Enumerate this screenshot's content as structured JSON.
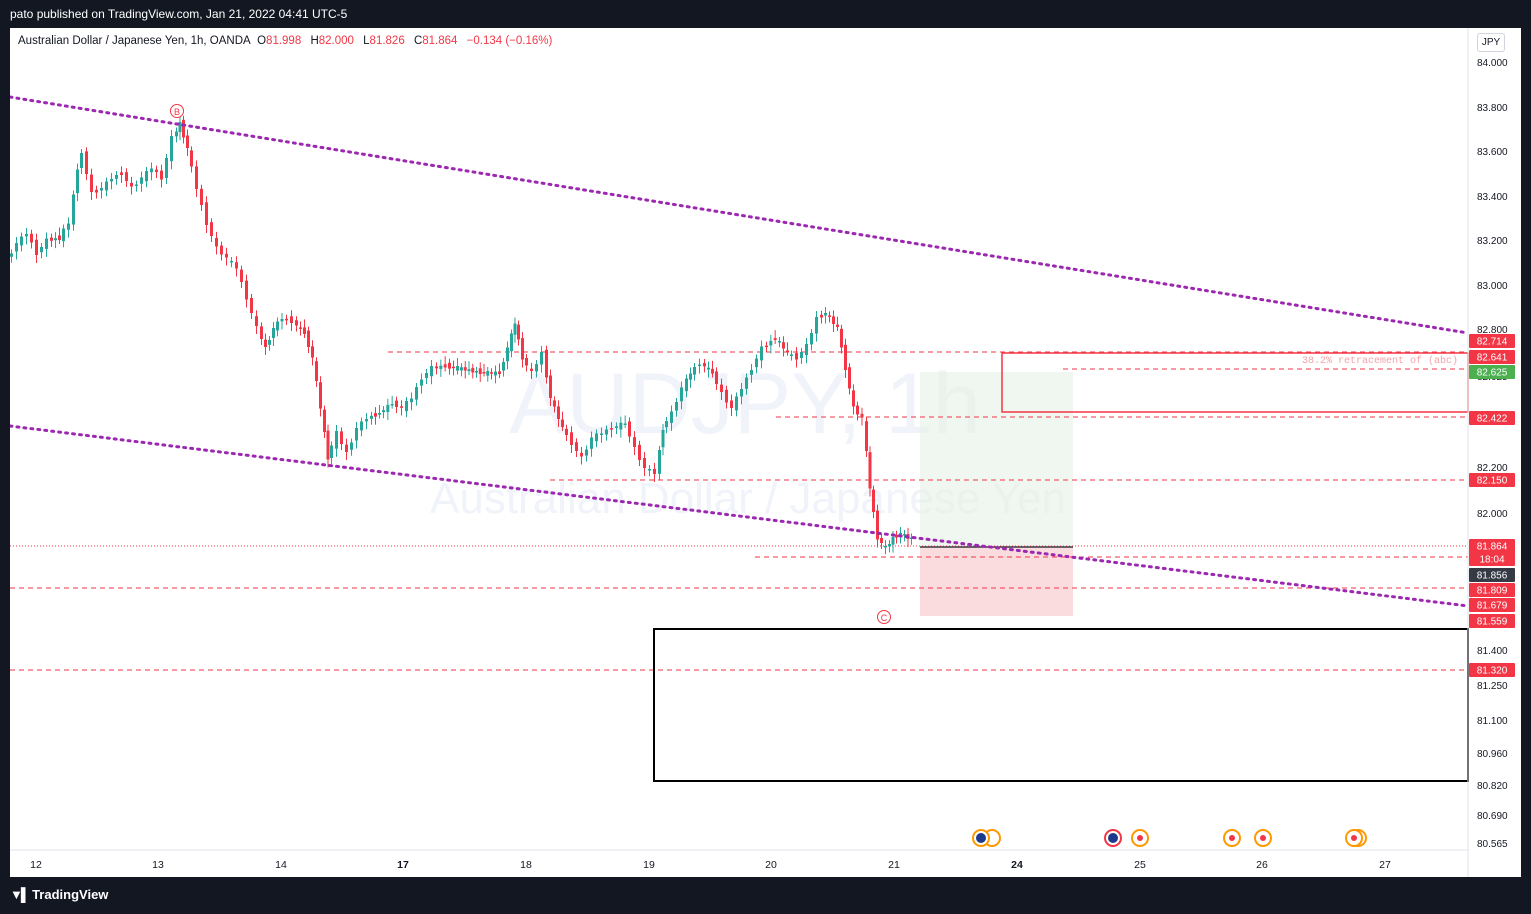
{
  "header": {
    "published": "pato published on TradingView.com, Jan 21, 2022 04:41 UTC-5"
  },
  "legend": {
    "symbol": "Australian Dollar / Japanese Yen, 1h, OANDA",
    "open_label": "O",
    "open": "81.998",
    "high_label": "H",
    "high": "82.000",
    "low_label": "L",
    "low": "81.826",
    "close_label": "C",
    "close": "81.864",
    "change": "−0.134 (−0.16%)"
  },
  "currency_button": "JPY",
  "watermark": {
    "ticker": "AUDJPY, 1h",
    "name": "Australian Dollar / Japanese Yen"
  },
  "annotations": {
    "fib_text": "38.2% retracement of (abc)",
    "wave_b": "B",
    "wave_c": "C"
  },
  "price_axis": [
    "84.000",
    "83.800",
    "83.600",
    "83.400",
    "83.200",
    "83.000",
    "82.800",
    "82.625",
    "82.200",
    "82.000",
    "81.400",
    "81.250",
    "81.100",
    "80.960",
    "80.820",
    "80.690",
    "80.565"
  ],
  "price_badges": [
    {
      "label": "82.714",
      "color": "#f23645"
    },
    {
      "label": "82.641",
      "color": "#f23645"
    },
    {
      "label": "82.625",
      "color": "#4caf50"
    },
    {
      "label": "82.422",
      "color": "#f23645"
    },
    {
      "label": "82.150",
      "color": "#f23645"
    },
    {
      "label": "81.864",
      "color": "#f23645"
    },
    {
      "label": "18:04",
      "color": "#f23645"
    },
    {
      "label": "81.856",
      "color": "#363a45"
    },
    {
      "label": "81.809",
      "color": "#f23645"
    },
    {
      "label": "81.679",
      "color": "#f23645"
    },
    {
      "label": "81.559",
      "color": "#f23645"
    },
    {
      "label": "81.320",
      "color": "#f23645"
    }
  ],
  "time_axis": [
    {
      "label": "12",
      "bold": false
    },
    {
      "label": "13",
      "bold": false
    },
    {
      "label": "14",
      "bold": false
    },
    {
      "label": "17",
      "bold": true
    },
    {
      "label": "18",
      "bold": false
    },
    {
      "label": "19",
      "bold": false
    },
    {
      "label": "20",
      "bold": false
    },
    {
      "label": "21",
      "bold": false
    },
    {
      "label": "24",
      "bold": true
    },
    {
      "label": "25",
      "bold": false
    },
    {
      "label": "26",
      "bold": false
    },
    {
      "label": "27",
      "bold": false
    }
  ],
  "footer": {
    "brand": "TradingView"
  },
  "colors": {
    "up": "#26a69a",
    "down": "#f23645",
    "trend": "#9c27b0",
    "level": "#f23645"
  }
}
